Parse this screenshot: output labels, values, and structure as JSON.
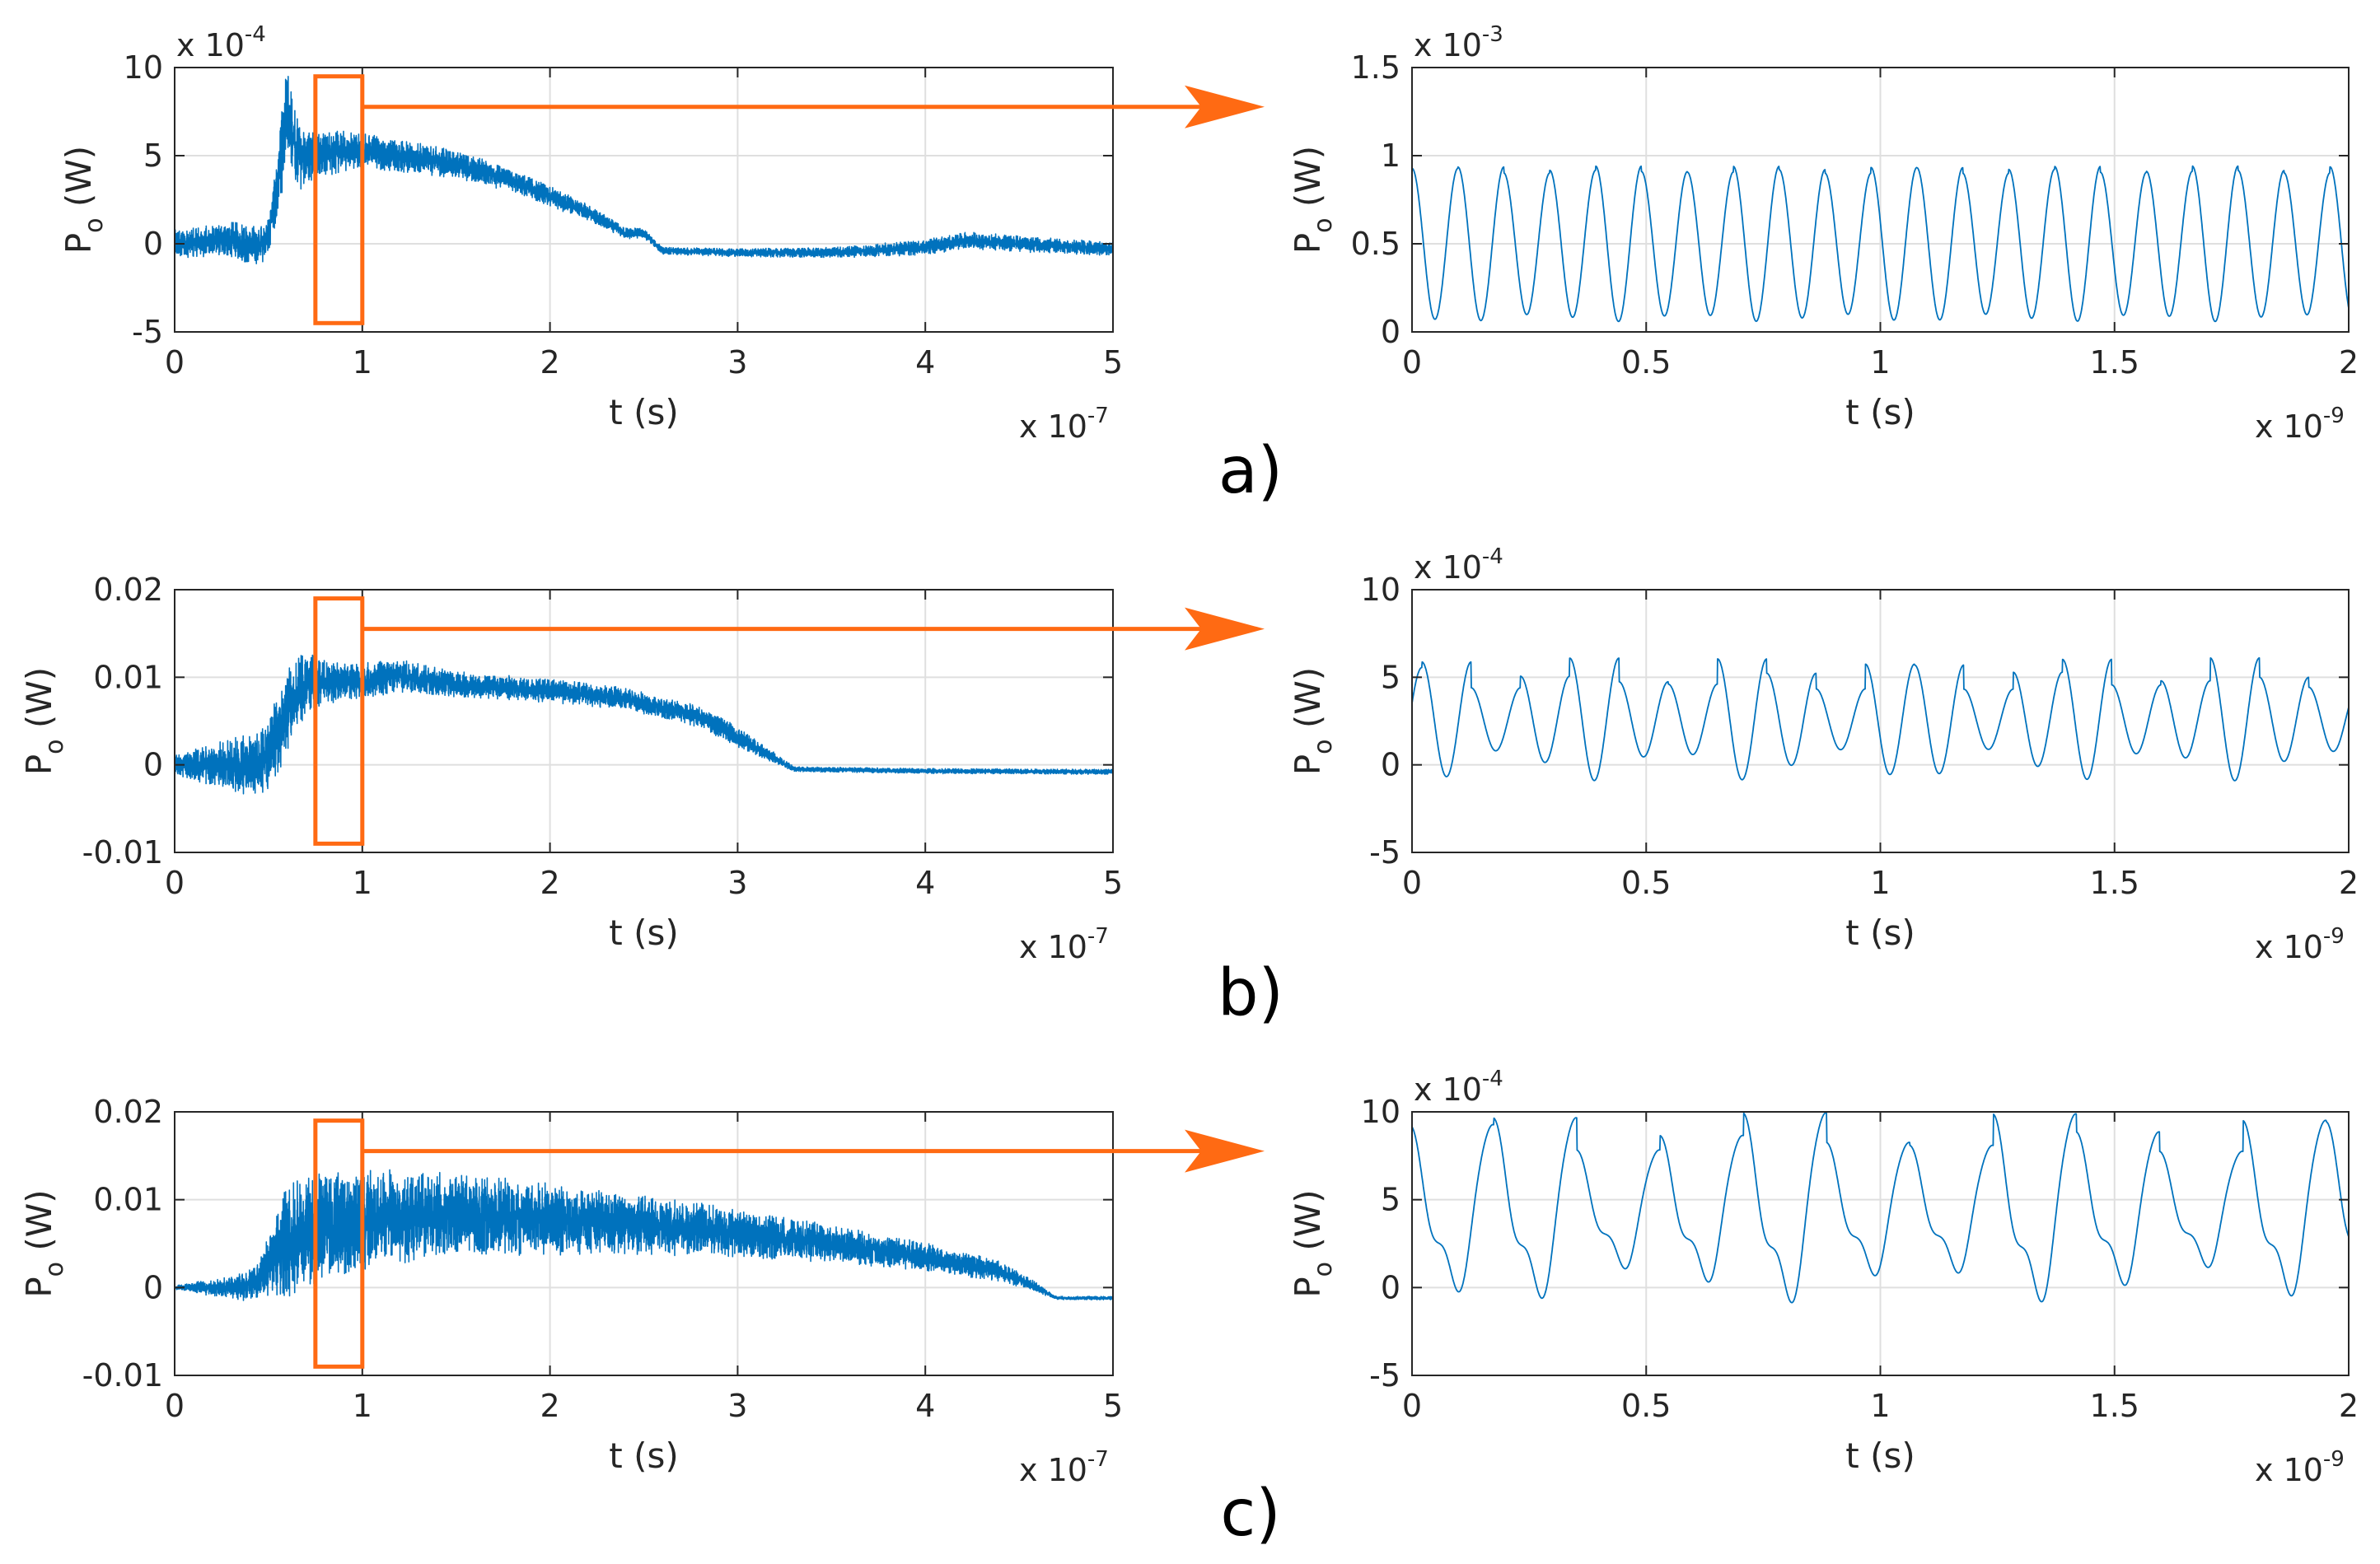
{
  "colors": {
    "signal": "#0072bd",
    "highlight": "#ff6a13",
    "axis": "#262626",
    "grid": "#dfdfdf"
  },
  "panel_labels": [
    "a)",
    "b)",
    "c)"
  ],
  "chart_data": [
    {
      "id": "a-left",
      "type": "line",
      "row": 0,
      "col": 0,
      "title": "",
      "xlabel": "t (s)",
      "ylabel_base": "P",
      "ylabel_sub": "o",
      "ylabel_unit": " (W)",
      "xlim": [
        0,
        5
      ],
      "ylim": [
        -5,
        10
      ],
      "xticks": [
        0,
        1,
        2,
        3,
        4,
        5
      ],
      "xtick_labels": [
        "0",
        "1",
        "2",
        "3",
        "4",
        "5"
      ],
      "yticks": [
        -5,
        0,
        5,
        10
      ],
      "ytick_labels": [
        "-5",
        "0",
        "5",
        "10"
      ],
      "x_multiplier": {
        "base": "x 10",
        "exp": "-7"
      },
      "y_multiplier": {
        "base": "x 10",
        "exp": "-4"
      },
      "grid": true,
      "highlight_box": {
        "x": [
          0.75,
          1.0
        ],
        "y": [
          -4.5,
          9.5
        ]
      },
      "envelope": [
        [
          0,
          0
        ],
        [
          0.3,
          0.2
        ],
        [
          0.45,
          -0.1
        ],
        [
          0.5,
          0.5
        ],
        [
          0.55,
          3.5
        ],
        [
          0.6,
          7.5
        ],
        [
          0.65,
          5
        ],
        [
          0.8,
          5.2
        ],
        [
          1.0,
          5.3
        ],
        [
          1.2,
          5.0
        ],
        [
          1.5,
          4.5
        ],
        [
          1.8,
          3.6
        ],
        [
          2.0,
          2.7
        ],
        [
          2.2,
          1.8
        ],
        [
          2.4,
          0.6
        ],
        [
          2.5,
          0.6
        ],
        [
          2.6,
          -0.4
        ],
        [
          3.0,
          -0.5
        ],
        [
          3.5,
          -0.5
        ],
        [
          4.0,
          -0.2
        ],
        [
          4.2,
          0.2
        ],
        [
          4.5,
          0
        ],
        [
          5.0,
          -0.3
        ]
      ],
      "noise": [
        [
          0,
          0.8
        ],
        [
          0.5,
          1.2
        ],
        [
          0.6,
          3
        ],
        [
          0.7,
          1.6
        ],
        [
          1.0,
          1.0
        ],
        [
          2.0,
          0.6
        ],
        [
          2.6,
          0.2
        ],
        [
          3.5,
          0.3
        ],
        [
          4.2,
          0.5
        ],
        [
          5,
          0.4
        ]
      ]
    },
    {
      "id": "a-right",
      "type": "line",
      "row": 0,
      "col": 1,
      "title": "",
      "xlabel": "t (s)",
      "ylabel_base": "P",
      "ylabel_sub": "o",
      "ylabel_unit": " (W)",
      "xlim": [
        0,
        2
      ],
      "ylim": [
        0,
        1.5
      ],
      "xticks": [
        0,
        0.5,
        1,
        1.5,
        2
      ],
      "xtick_labels": [
        "0",
        "0.5",
        "1",
        "1.5",
        "2"
      ],
      "yticks": [
        0,
        0.5,
        1,
        1.5
      ],
      "ytick_labels": [
        "0",
        "0.5",
        "1",
        "1.5"
      ],
      "x_multiplier": {
        "base": "x 10",
        "exp": "-9"
      },
      "y_multiplier": {
        "base": "x 10",
        "exp": "-3"
      },
      "grid": true,
      "oscillation": {
        "period": 0.098,
        "phase": 0.0,
        "mean": 0.5,
        "amp": 0.42,
        "amp_jitter": 0.05,
        "shape": "sine"
      }
    },
    {
      "id": "b-left",
      "type": "line",
      "row": 1,
      "col": 0,
      "title": "",
      "xlabel": "t (s)",
      "ylabel_base": "P",
      "ylabel_sub": "o",
      "ylabel_unit": " (W)",
      "xlim": [
        0,
        5
      ],
      "ylim": [
        -0.01,
        0.02
      ],
      "xticks": [
        0,
        1,
        2,
        3,
        4,
        5
      ],
      "xtick_labels": [
        "0",
        "1",
        "2",
        "3",
        "4",
        "5"
      ],
      "yticks": [
        -0.01,
        0,
        0.01,
        0.02
      ],
      "ytick_labels": [
        "-0.01",
        "0",
        "0.01",
        "0.02"
      ],
      "x_multiplier": {
        "base": "x 10",
        "exp": "-7"
      },
      "y_multiplier": null,
      "grid": true,
      "highlight_box": {
        "x": [
          0.75,
          1.0
        ],
        "y": [
          -0.009,
          0.019
        ]
      },
      "envelope": [
        [
          0,
          0
        ],
        [
          0.4,
          0.0
        ],
        [
          0.5,
          0.001
        ],
        [
          0.6,
          0.006
        ],
        [
          0.7,
          0.0095
        ],
        [
          1.0,
          0.0095
        ],
        [
          1.2,
          0.0102
        ],
        [
          1.5,
          0.0092
        ],
        [
          2.0,
          0.0085
        ],
        [
          2.4,
          0.0075
        ],
        [
          2.8,
          0.0055
        ],
        [
          3.1,
          0.002
        ],
        [
          3.3,
          -0.0005
        ],
        [
          4.0,
          -0.0007
        ],
        [
          5.0,
          -0.0008
        ]
      ],
      "noise": [
        [
          0,
          0.0012
        ],
        [
          0.6,
          0.005
        ],
        [
          0.8,
          0.0025
        ],
        [
          1.5,
          0.0015
        ],
        [
          3.0,
          0.0012
        ],
        [
          3.3,
          0.0003
        ],
        [
          5,
          0.0003
        ]
      ]
    },
    {
      "id": "b-right",
      "type": "line",
      "row": 1,
      "col": 1,
      "title": "",
      "xlabel": "t (s)",
      "ylabel_base": "P",
      "ylabel_sub": "o",
      "ylabel_unit": " (W)",
      "xlim": [
        0,
        2
      ],
      "ylim": [
        -5,
        10
      ],
      "xticks": [
        0,
        0.5,
        1,
        1.5,
        2
      ],
      "xtick_labels": [
        "0",
        "0.5",
        "1",
        "1.5",
        "2"
      ],
      "yticks": [
        -5,
        0,
        5,
        10
      ],
      "ytick_labels": [
        "-5",
        "0",
        "5",
        "10"
      ],
      "x_multiplier": {
        "base": "x 10",
        "exp": "-9"
      },
      "y_multiplier": {
        "base": "x 10",
        "exp": "-4"
      },
      "grid": true,
      "oscillation": {
        "period": 0.1052,
        "phase": 0.8,
        "mean": 2.6,
        "amp": 2.6,
        "amp_jitter": 0.35,
        "shape": "sine"
      }
    },
    {
      "id": "c-left",
      "type": "line",
      "row": 2,
      "col": 0,
      "title": "",
      "xlabel": "t (s)",
      "ylabel_base": "P",
      "ylabel_sub": "o",
      "ylabel_unit": " (W)",
      "xlim": [
        0,
        5
      ],
      "ylim": [
        -0.01,
        0.02
      ],
      "xticks": [
        0,
        1,
        2,
        3,
        4,
        5
      ],
      "xtick_labels": [
        "0",
        "1",
        "2",
        "3",
        "4",
        "5"
      ],
      "yticks": [
        -0.01,
        0,
        0.01,
        0.02
      ],
      "ytick_labels": [
        "-0.01",
        "0",
        "0.01",
        "0.02"
      ],
      "x_multiplier": {
        "base": "x 10",
        "exp": "-7"
      },
      "y_multiplier": null,
      "grid": true,
      "highlight_box": {
        "x": [
          0.75,
          1.0
        ],
        "y": [
          -0.009,
          0.019
        ]
      },
      "envelope": [
        [
          0,
          0
        ],
        [
          0.35,
          0.0
        ],
        [
          0.45,
          0.0008
        ],
        [
          0.55,
          0.004
        ],
        [
          0.7,
          0.0065
        ],
        [
          1.0,
          0.0078
        ],
        [
          1.5,
          0.0083
        ],
        [
          2.0,
          0.0078
        ],
        [
          2.5,
          0.0072
        ],
        [
          3.0,
          0.0062
        ],
        [
          3.5,
          0.005
        ],
        [
          4.0,
          0.0035
        ],
        [
          4.4,
          0.0018
        ],
        [
          4.55,
          0.0005
        ],
        [
          4.7,
          -0.0012
        ],
        [
          5.0,
          -0.0012
        ]
      ],
      "noise": [
        [
          0,
          0.0002
        ],
        [
          0.45,
          0.002
        ],
        [
          0.6,
          0.007
        ],
        [
          1.0,
          0.0058
        ],
        [
          1.5,
          0.0048
        ],
        [
          2.5,
          0.0035
        ],
        [
          3.5,
          0.0022
        ],
        [
          4.4,
          0.0012
        ],
        [
          4.7,
          0.0002
        ],
        [
          5,
          0.0002
        ]
      ]
    },
    {
      "id": "c-right",
      "type": "line",
      "row": 2,
      "col": 1,
      "title": "",
      "xlabel": "t (s)",
      "ylabel_base": "P",
      "ylabel_sub": "o",
      "ylabel_unit": " (W)",
      "xlim": [
        0,
        2
      ],
      "ylim": [
        -5,
        10
      ],
      "xticks": [
        0,
        0.5,
        1,
        1.5,
        2
      ],
      "xtick_labels": [
        "0",
        "0.5",
        "1",
        "1.5",
        "2"
      ],
      "yticks": [
        -5,
        0,
        5,
        10
      ],
      "ytick_labels": [
        "-5",
        "0",
        "5",
        "10"
      ],
      "x_multiplier": {
        "base": "x 10",
        "exp": "-9"
      },
      "y_multiplier": {
        "base": "x 10",
        "exp": "-4"
      },
      "grid": true,
      "oscillation": {
        "period": 0.1778,
        "phase": 0.02,
        "mean": 4.3,
        "amp": 4.5,
        "amp_jitter": 0.25,
        "shape": "relaxation"
      }
    }
  ]
}
